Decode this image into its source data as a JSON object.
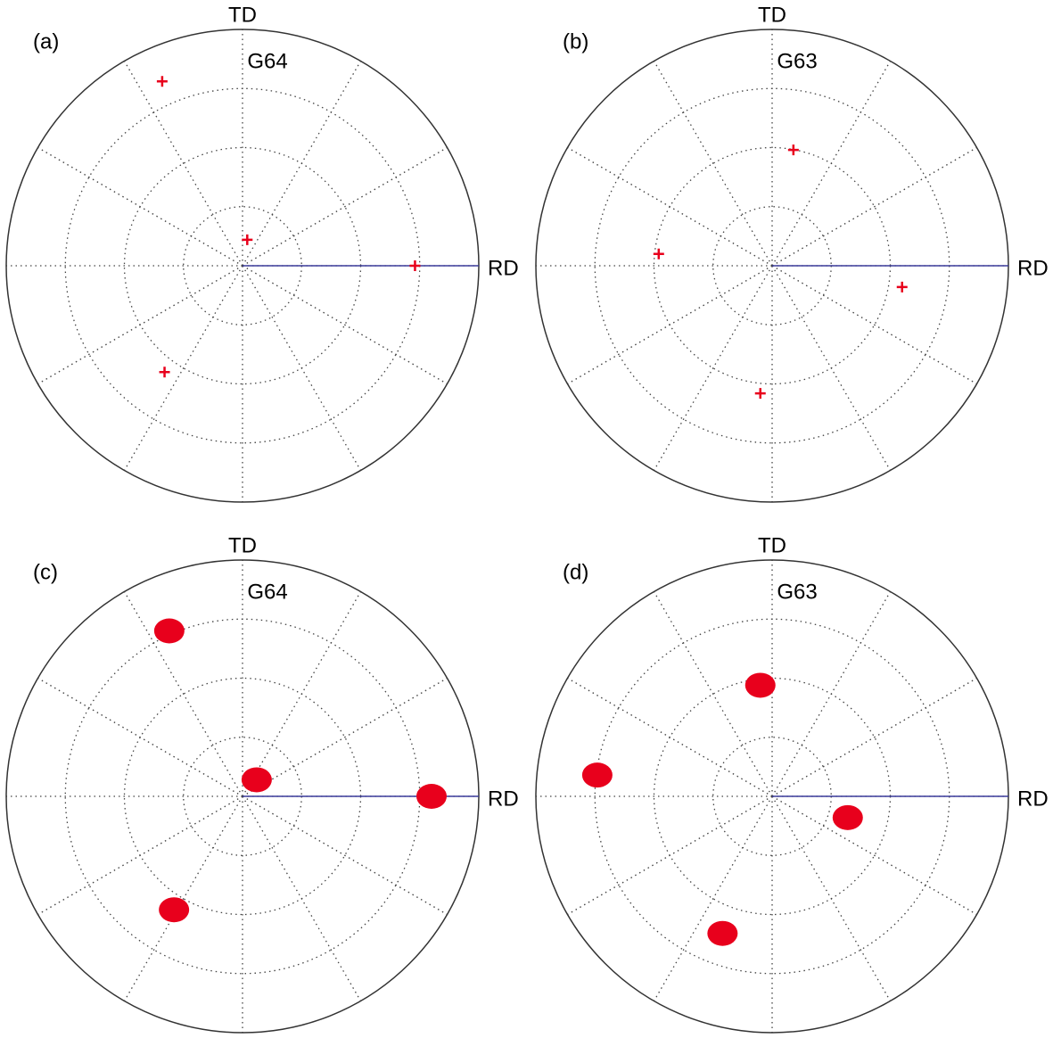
{
  "chart_data": [
    {
      "type": "scatter",
      "panel_label": "(a)",
      "title": "G64",
      "top_label": "TD",
      "right_label": "RD",
      "x": [
        -0.34,
        0.02,
        0.73,
        -0.33
      ],
      "y": [
        0.78,
        0.11,
        0.0,
        -0.45
      ],
      "color": "#e8001c",
      "marker": "star",
      "xlim": [
        -1,
        1
      ],
      "ylim": [
        -1,
        1
      ],
      "rticks": [
        0.25,
        0.5,
        0.75
      ],
      "thetaticks": [
        0,
        30,
        60,
        90,
        120,
        150,
        180,
        210,
        240,
        270,
        300,
        330
      ]
    },
    {
      "type": "scatter",
      "panel_label": "(b)",
      "title": "G63",
      "top_label": "TD",
      "right_label": "RD",
      "x": [
        0.09,
        -0.48,
        0.55,
        -0.05
      ],
      "y": [
        0.49,
        0.05,
        -0.09,
        -0.54
      ],
      "color": "#e8001c",
      "marker": "star",
      "xlim": [
        -1,
        1
      ],
      "ylim": [
        -1,
        1
      ],
      "rticks": [
        0.25,
        0.5,
        0.75
      ],
      "thetaticks": [
        0,
        30,
        60,
        90,
        120,
        150,
        180,
        210,
        240,
        270,
        300,
        330
      ]
    },
    {
      "type": "scatter",
      "panel_label": "(c)",
      "title": "G64",
      "top_label": "TD",
      "right_label": "RD",
      "x": [
        -0.31,
        0.06,
        0.8,
        -0.29
      ],
      "y": [
        0.7,
        0.07,
        0.0,
        -0.48
      ],
      "color": "#e8001c",
      "marker": "blob",
      "xlim": [
        -1,
        1
      ],
      "ylim": [
        -1,
        1
      ],
      "rticks": [
        0.25,
        0.5,
        0.75
      ],
      "thetaticks": [
        0,
        30,
        60,
        90,
        120,
        150,
        180,
        210,
        240,
        270,
        300,
        330
      ]
    },
    {
      "type": "scatter",
      "panel_label": "(d)",
      "title": "G63",
      "top_label": "TD",
      "right_label": "RD",
      "x": [
        -0.05,
        -0.74,
        0.32,
        -0.21
      ],
      "y": [
        0.47,
        0.09,
        -0.09,
        -0.58
      ],
      "color": "#e8001c",
      "marker": "blob",
      "xlim": [
        -1,
        1
      ],
      "ylim": [
        -1,
        1
      ],
      "rticks": [
        0.25,
        0.5,
        0.75
      ],
      "thetaticks": [
        0,
        30,
        60,
        90,
        120,
        150,
        180,
        210,
        240,
        270,
        300,
        330
      ]
    }
  ]
}
